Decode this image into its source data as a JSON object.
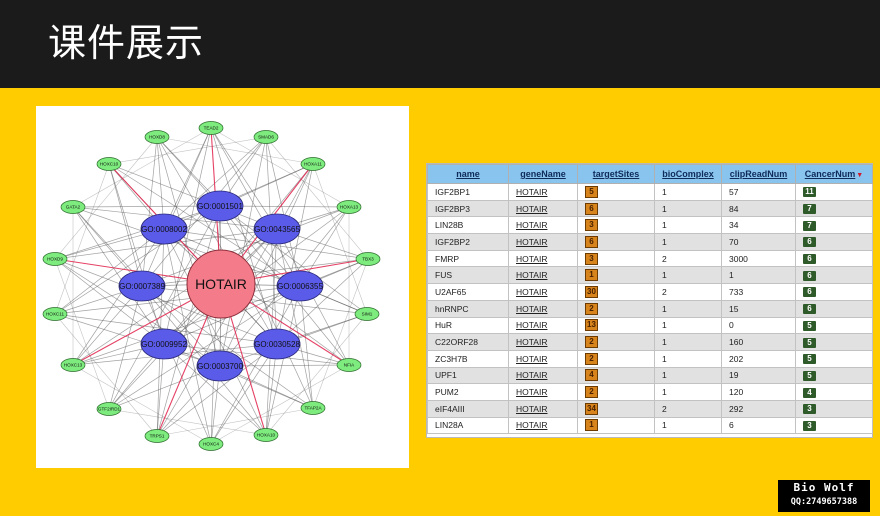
{
  "slide": {
    "title": "课件展示",
    "colors": {
      "background": "#FFCC00",
      "title_bar": "#1b1b1b"
    }
  },
  "network": {
    "center": {
      "label": "HOTAIR",
      "color": "#f47c8a"
    },
    "go_nodes": [
      "GO:0001501",
      "GO:0043565",
      "GO:0006355",
      "GO:0030528",
      "GO:0003700",
      "GO:0009952",
      "GO:0007389",
      "GO:0008002"
    ],
    "gene_nodes": [
      "TEAD2",
      "SMAD6",
      "HOXA11",
      "HOXA13",
      "TBX3",
      "SIM1",
      "NFIA",
      "TFAP2A",
      "HOXA10",
      "HOXC4",
      "TRPS1",
      "GTF2IRD1",
      "HOXC13",
      "HOXC11",
      "HOXD9",
      "GATA2",
      "HOXC10",
      "HOXD8"
    ],
    "colors": {
      "go_node": "#5b5bea",
      "gene_node": "#7deb7d",
      "highlight_edge": "#e0204a",
      "edge": "#555555"
    }
  },
  "table": {
    "columns": [
      "name",
      "geneName",
      "targetSites",
      "bioComplex",
      "clipReadNum",
      "CancerNum"
    ],
    "rows": [
      {
        "name": "IGF2BP1",
        "geneName": "HOTAIR",
        "targetSites": "5",
        "bioComplex": "1",
        "clipReadNum": "57",
        "CancerNum": "11"
      },
      {
        "name": "IGF2BP3",
        "geneName": "HOTAIR",
        "targetSites": "6",
        "bioComplex": "1",
        "clipReadNum": "84",
        "CancerNum": "7"
      },
      {
        "name": "LIN28B",
        "geneName": "HOTAIR",
        "targetSites": "3",
        "bioComplex": "1",
        "clipReadNum": "34",
        "CancerNum": "7"
      },
      {
        "name": "IGF2BP2",
        "geneName": "HOTAIR",
        "targetSites": "6",
        "bioComplex": "1",
        "clipReadNum": "70",
        "CancerNum": "6"
      },
      {
        "name": "FMRP",
        "geneName": "HOTAIR",
        "targetSites": "3",
        "bioComplex": "2",
        "clipReadNum": "3000",
        "CancerNum": "6"
      },
      {
        "name": "FUS",
        "geneName": "HOTAIR",
        "targetSites": "1",
        "bioComplex": "1",
        "clipReadNum": "1",
        "CancerNum": "6"
      },
      {
        "name": "U2AF65",
        "geneName": "HOTAIR",
        "targetSites": "30",
        "bioComplex": "2",
        "clipReadNum": "733",
        "CancerNum": "6"
      },
      {
        "name": "hnRNPC",
        "geneName": "HOTAIR",
        "targetSites": "2",
        "bioComplex": "1",
        "clipReadNum": "15",
        "CancerNum": "6"
      },
      {
        "name": "HuR",
        "geneName": "HOTAIR",
        "targetSites": "13",
        "bioComplex": "1",
        "clipReadNum": "0",
        "CancerNum": "5"
      },
      {
        "name": "C22ORF28",
        "geneName": "HOTAIR",
        "targetSites": "2",
        "bioComplex": "1",
        "clipReadNum": "160",
        "CancerNum": "5"
      },
      {
        "name": "ZC3H7B",
        "geneName": "HOTAIR",
        "targetSites": "2",
        "bioComplex": "1",
        "clipReadNum": "202",
        "CancerNum": "5"
      },
      {
        "name": "UPF1",
        "geneName": "HOTAIR",
        "targetSites": "4",
        "bioComplex": "1",
        "clipReadNum": "19",
        "CancerNum": "5"
      },
      {
        "name": "PUM2",
        "geneName": "HOTAIR",
        "targetSites": "2",
        "bioComplex": "1",
        "clipReadNum": "120",
        "CancerNum": "4"
      },
      {
        "name": "eIF4AIII",
        "geneName": "HOTAIR",
        "targetSites": "34",
        "bioComplex": "2",
        "clipReadNum": "292",
        "CancerNum": "3"
      },
      {
        "name": "LIN28A",
        "geneName": "HOTAIR",
        "targetSites": "1",
        "bioComplex": "1",
        "clipReadNum": "6",
        "CancerNum": "3"
      }
    ],
    "sort_indicator_icon": "sort-descending-icon"
  },
  "watermark": {
    "line1": "Bio Wolf",
    "line2": "QQ:2749657388"
  }
}
